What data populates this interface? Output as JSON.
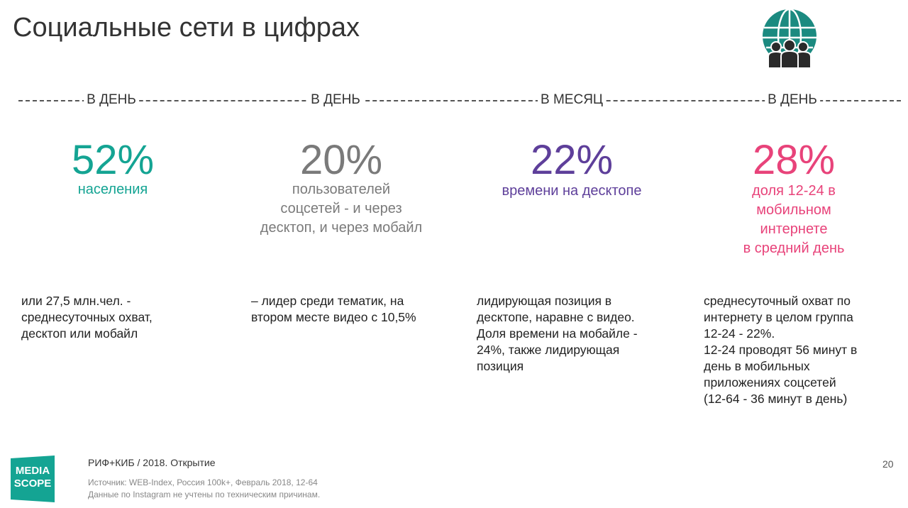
{
  "title": "Социальные сети в цифрах",
  "colors": {
    "teal": "#14a493",
    "gray": "#7a7a7a",
    "purple": "#5e3f9a",
    "pink": "#e8437a",
    "icon": "#1b8a80"
  },
  "icons": {
    "header": "globe-people-icon",
    "logo": "mediascope-logo"
  },
  "periods": [
    "В ДЕНЬ",
    "В ДЕНЬ",
    "В МЕСЯЦ",
    "В ДЕНЬ"
  ],
  "stats": [
    {
      "value": "52%",
      "label_lines": [
        "населения"
      ]
    },
    {
      "value": "20%",
      "label_lines": [
        "пользователей",
        "соцсетей - и через",
        "десктоп, и через мобайл"
      ]
    },
    {
      "value": "22%",
      "label_lines": [
        "времени на десктопе"
      ]
    },
    {
      "value": "28%",
      "label_lines": [
        "доля 12-24 в",
        "мобильном интернете",
        "в средний день"
      ]
    }
  ],
  "notes": [
    [
      "или 27,5 млн.чел. -",
      "среднесуточных охват,",
      "десктоп или мобайл"
    ],
    [
      "– лидер среди тематик, на",
      "втором месте видео с 10,5%"
    ],
    [
      "лидирующая позиция в",
      "десктопе, наравне с видео.",
      "Доля времени на мобайле -",
      "24%, также лидирующая",
      "позиция"
    ],
    [
      "среднесуточный охват по",
      "интернету в целом группа",
      "12-24 - 22%.",
      "12-24 проводят 56 минут в",
      "день в мобильных",
      "приложениях соцсетей",
      "(12-64 - 36 минут в день)"
    ]
  ],
  "footer": {
    "main": "РИФ+КИБ / 2018. Открытие",
    "source_lines": [
      "Источник: WEB-Index, Россия 100k+, Февраль 2018, 12-64",
      "Данные по Instagram не учтены по техническим причинам."
    ],
    "page": "20"
  },
  "logo": {
    "line1": "MEDIA",
    "line2": "SCOPE"
  }
}
